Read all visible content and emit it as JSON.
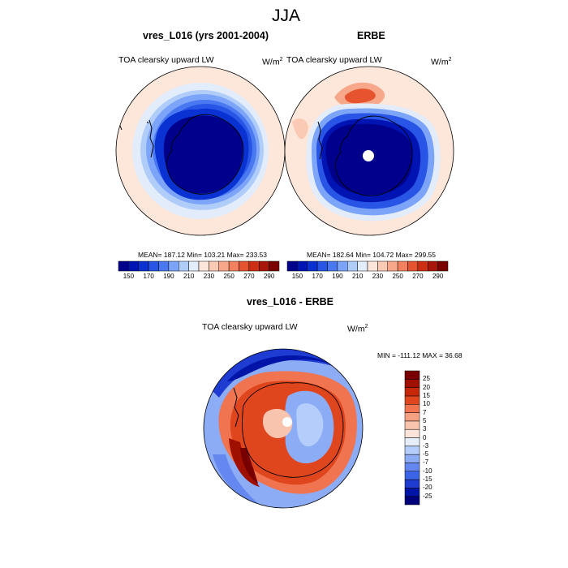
{
  "main_title": "JJA",
  "chart_data": [
    {
      "type": "heatmap",
      "projection": "south-polar-stereographic",
      "title": "vres_L016 (yrs 2001-2004)",
      "variable": "TOA clearsky upward LW",
      "units": "W/m",
      "units_exp": "2",
      "stats_text": "MEAN= 187.12  Min= 103.21  Max= 233.53",
      "stats": {
        "mean": 187.12,
        "min": 103.21,
        "max": 233.53
      },
      "colorbar": {
        "levels": [
          150,
          160,
          170,
          180,
          190,
          200,
          210,
          220,
          230,
          240,
          250,
          260,
          270,
          280,
          290
        ],
        "tick_labels": [
          "150",
          "170",
          "190",
          "210",
          "230",
          "250",
          "270",
          "290"
        ],
        "colors": [
          "#00008c",
          "#0014b4",
          "#0a32d2",
          "#2855e6",
          "#4a78f0",
          "#7ca4f8",
          "#b0cdfa",
          "#e2ecfa",
          "#fde6da",
          "#fbcab4",
          "#f8a88a",
          "#f4815e",
          "#e5542f",
          "#cc2f13",
          "#a8150a",
          "#7a0000"
        ]
      }
    },
    {
      "type": "heatmap",
      "projection": "south-polar-stereographic",
      "title": "ERBE",
      "variable": "TOA clearsky upward LW",
      "units": "W/m",
      "units_exp": "2",
      "stats_text": "MEAN= 182.64  Min= 104.72  Max= 299.55",
      "stats": {
        "mean": 182.64,
        "min": 104.72,
        "max": 299.55
      },
      "colorbar": {
        "levels": [
          150,
          160,
          170,
          180,
          190,
          200,
          210,
          220,
          230,
          240,
          250,
          260,
          270,
          280,
          290
        ],
        "tick_labels": [
          "150",
          "170",
          "190",
          "210",
          "230",
          "250",
          "270",
          "290"
        ],
        "colors": [
          "#00008c",
          "#0014b4",
          "#0a32d2",
          "#2855e6",
          "#4a78f0",
          "#7ca4f8",
          "#b0cdfa",
          "#e2ecfa",
          "#fde6da",
          "#fbcab4",
          "#f8a88a",
          "#f4815e",
          "#e5542f",
          "#cc2f13",
          "#a8150a",
          "#7a0000"
        ]
      }
    },
    {
      "type": "heatmap",
      "projection": "south-polar-stereographic",
      "title": "vres_L016 - ERBE",
      "variable": "TOA clearsky upward LW",
      "units": "W/m",
      "units_exp": "2",
      "stats_text": "MIN = -111.12 MAX =  36.68",
      "stats": {
        "min": -111.12,
        "max": 36.68
      },
      "colorbar": {
        "orientation": "vertical",
        "levels": [
          -25,
          -20,
          -15,
          -10,
          -7,
          -5,
          -3,
          0,
          3,
          5,
          7,
          10,
          15,
          20,
          25
        ],
        "tick_labels": [
          "-25",
          "-20",
          "-15",
          "-10",
          "-7",
          "-5",
          "-3",
          "0",
          "3",
          "5",
          "7",
          "10",
          "15",
          "20",
          "25"
        ],
        "colors": [
          "#00007a",
          "#0014a8",
          "#1e3cd2",
          "#3c64e6",
          "#6488f0",
          "#8cacf5",
          "#b4cdfa",
          "#e6eefa",
          "#fbe4da",
          "#f8c4ae",
          "#f5a082",
          "#f07450",
          "#e0461e",
          "#c8280a",
          "#a01000",
          "#780000"
        ]
      }
    }
  ]
}
